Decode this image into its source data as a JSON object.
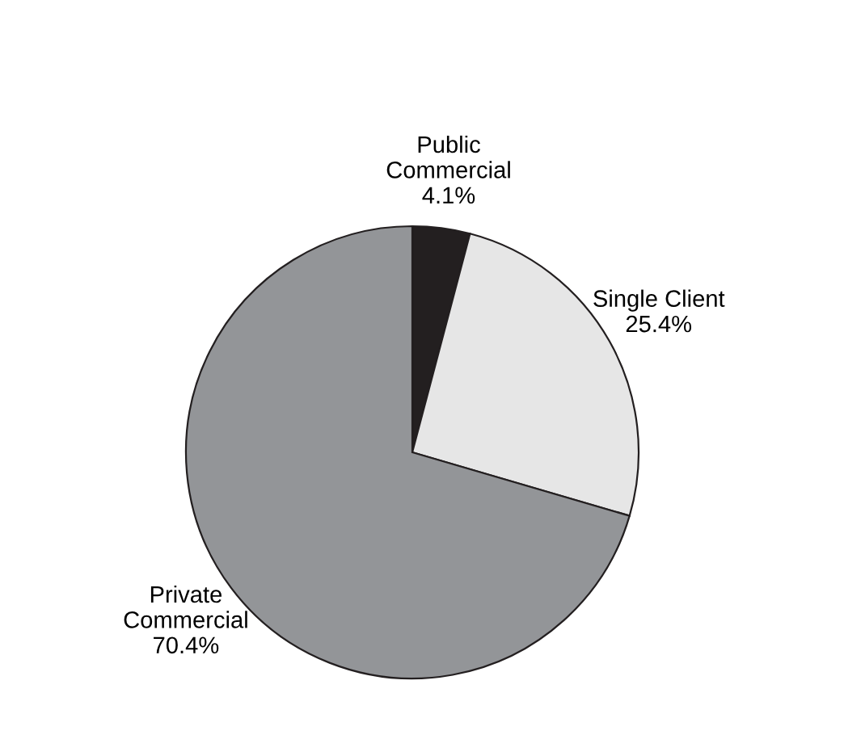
{
  "chart_data": {
    "type": "pie",
    "categories": [
      "Public Commercial",
      "Single Client",
      "Private Commercial"
    ],
    "values": [
      4.1,
      25.4,
      70.4
    ],
    "value_labels": [
      "4.1%",
      "25.4%",
      "70.4%"
    ],
    "colors": [
      "#231f20",
      "#e6e6e6",
      "#939598"
    ],
    "legend": false
  }
}
